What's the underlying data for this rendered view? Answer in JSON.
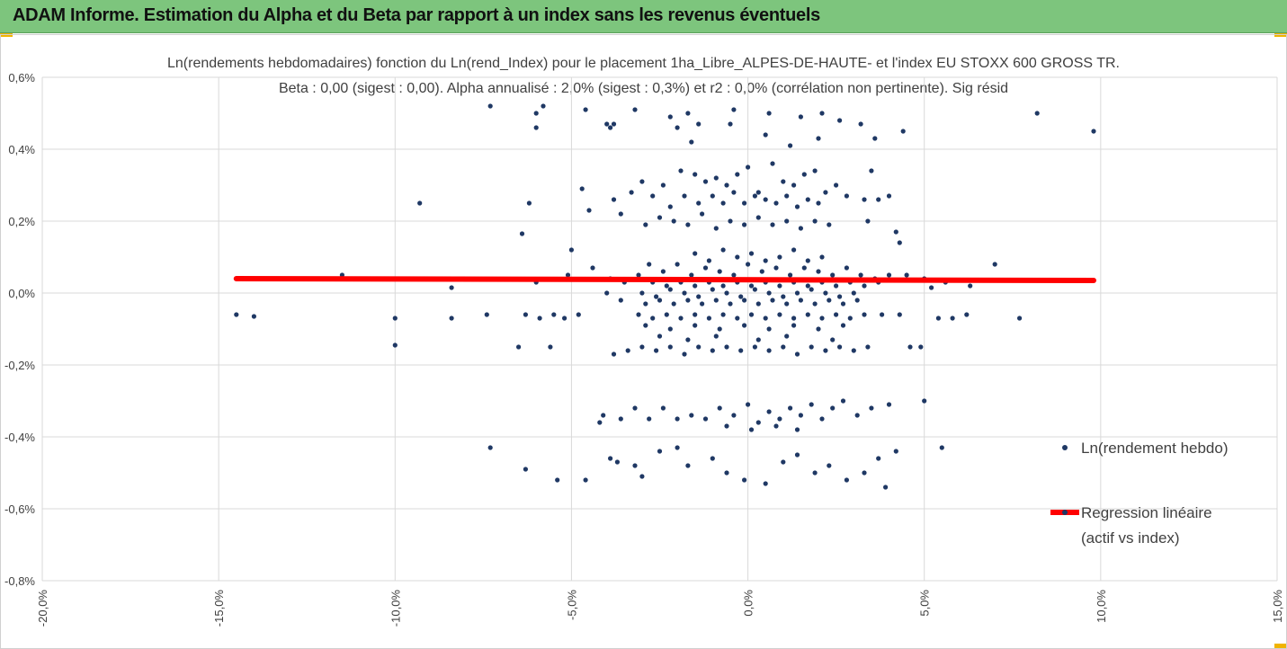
{
  "banner": {
    "title": "ADAM Informe. Estimation du Alpha et du Beta par rapport à un index sans les revenus éventuels"
  },
  "colors": {
    "banner_bg": "#7dc57d",
    "accent_corner": "#f0b400",
    "points": "#1f3864",
    "regression": "#ff0000"
  },
  "chart_data": {
    "type": "scatter",
    "title": "Ln(rendements hebdomadaires) fonction du Ln(rend_Index) pour le placement 1ha_Libre_ALPES-DE-HAUTE- et l'index EU STOXX 600 GROSS TR.",
    "subtitle": "Beta : 0,00 (sigest : 0,00). Alpha annualisé : 2,0% (sigest : 0,3%) et r2 : 0,0% (corrélation non pertinente). Sig résid",
    "xlim": [
      -20,
      15
    ],
    "ylim": [
      -0.8,
      0.6
    ],
    "x_ticks": [
      "-20,0%",
      "-15,0%",
      "-10,0%",
      "-5,0%",
      "0,0%",
      "5,0%",
      "10,0%",
      "15,0%"
    ],
    "y_ticks": [
      "0,6%",
      "0,4%",
      "0,2%",
      "0,0%",
      "-0,2%",
      "-0,4%",
      "-0,6%",
      "-0,8%"
    ],
    "grid": true,
    "legend_position": "right",
    "series": [
      {
        "name": "Ln(rendement hebdo)",
        "kind": "points",
        "points": [
          [
            -14.5,
            -0.06
          ],
          [
            -14.0,
            -0.065
          ],
          [
            -11.5,
            0.05
          ],
          [
            -10.0,
            -0.07
          ],
          [
            -10.0,
            -0.145
          ],
          [
            -9.3,
            0.25
          ],
          [
            -8.4,
            0.015
          ],
          [
            -8.4,
            -0.07
          ],
          [
            -7.4,
            -0.06
          ],
          [
            -7.3,
            -0.43
          ],
          [
            -6.5,
            -0.15
          ],
          [
            -6.4,
            0.165
          ],
          [
            -6.3,
            -0.06
          ],
          [
            -6.3,
            -0.49
          ],
          [
            -6.2,
            0.25
          ],
          [
            -6.0,
            0.03
          ],
          [
            -5.9,
            -0.07
          ],
          [
            -5.6,
            -0.15
          ],
          [
            -5.5,
            -0.06
          ],
          [
            -5.4,
            -0.52
          ],
          [
            -5.2,
            -0.07
          ],
          [
            -5.1,
            0.05
          ],
          [
            -5.0,
            0.12
          ],
          [
            -4.8,
            -0.06
          ],
          [
            -4.7,
            0.29
          ],
          [
            -4.6,
            -0.52
          ],
          [
            -4.5,
            0.23
          ],
          [
            -4.4,
            0.07
          ],
          [
            -6.0,
            0.46
          ],
          [
            -6.0,
            0.5
          ],
          [
            -5.8,
            0.52
          ],
          [
            -4.6,
            0.51
          ],
          [
            -4.0,
            0.47
          ],
          [
            -3.9,
            0.46
          ],
          [
            -3.8,
            0.47
          ],
          [
            -3.2,
            0.51
          ],
          [
            -2.2,
            0.49
          ],
          [
            -2.0,
            0.46
          ],
          [
            -1.7,
            0.5
          ],
          [
            -1.4,
            0.47
          ],
          [
            -0.5,
            0.47
          ],
          [
            0.6,
            0.5
          ],
          [
            1.5,
            0.49
          ],
          [
            2.1,
            0.5
          ],
          [
            2.6,
            0.48
          ],
          [
            3.2,
            0.47
          ],
          [
            3.6,
            0.43
          ],
          [
            4.4,
            0.45
          ],
          [
            8.2,
            0.5
          ],
          [
            9.8,
            0.45
          ],
          [
            -7.3,
            0.52
          ],
          [
            -1.6,
            0.42
          ],
          [
            -0.4,
            0.51
          ],
          [
            0.5,
            0.44
          ],
          [
            1.2,
            0.41
          ],
          [
            2.0,
            0.43
          ],
          [
            -3.9,
            -0.46
          ],
          [
            -3.7,
            -0.47
          ],
          [
            -3.2,
            -0.48
          ],
          [
            -3.0,
            -0.51
          ],
          [
            -2.5,
            -0.44
          ],
          [
            -2.0,
            -0.43
          ],
          [
            -1.7,
            -0.48
          ],
          [
            -1.0,
            -0.46
          ],
          [
            -0.6,
            -0.5
          ],
          [
            -0.1,
            -0.52
          ],
          [
            0.5,
            -0.53
          ],
          [
            1.0,
            -0.47
          ],
          [
            1.4,
            -0.45
          ],
          [
            1.9,
            -0.5
          ],
          [
            2.3,
            -0.48
          ],
          [
            2.8,
            -0.52
          ],
          [
            3.3,
            -0.5
          ],
          [
            3.7,
            -0.46
          ],
          [
            3.9,
            -0.54
          ],
          [
            4.2,
            -0.44
          ],
          [
            4.6,
            -0.15
          ],
          [
            4.9,
            -0.15
          ],
          [
            5.0,
            -0.3
          ],
          [
            5.0,
            0.04
          ],
          [
            5.2,
            0.015
          ],
          [
            5.4,
            -0.07
          ],
          [
            5.5,
            -0.43
          ],
          [
            5.6,
            0.03
          ],
          [
            5.8,
            -0.07
          ],
          [
            6.2,
            -0.06
          ],
          [
            6.3,
            0.02
          ],
          [
            7.0,
            0.08
          ],
          [
            7.7,
            -0.07
          ],
          [
            4.2,
            0.17
          ],
          [
            4.3,
            0.14
          ],
          [
            4.0,
            0.27
          ],
          [
            3.7,
            0.26
          ],
          [
            3.3,
            0.26
          ],
          [
            3.5,
            0.34
          ],
          [
            3.4,
            0.2
          ],
          [
            -3.6,
            0.22
          ],
          [
            -3.8,
            0.26
          ],
          [
            -3.3,
            0.28
          ],
          [
            -3.0,
            0.31
          ],
          [
            -2.7,
            0.27
          ],
          [
            -2.4,
            0.3
          ],
          [
            -2.2,
            0.24
          ],
          [
            -1.9,
            0.34
          ],
          [
            -1.5,
            0.33
          ],
          [
            -1.2,
            0.31
          ],
          [
            -0.9,
            0.32
          ],
          [
            -0.6,
            0.3
          ],
          [
            -0.3,
            0.33
          ],
          [
            0.0,
            0.35
          ],
          [
            0.3,
            0.28
          ],
          [
            0.7,
            0.36
          ],
          [
            1.0,
            0.31
          ],
          [
            1.3,
            0.3
          ],
          [
            1.6,
            0.33
          ],
          [
            1.9,
            0.34
          ],
          [
            2.2,
            0.28
          ],
          [
            2.5,
            0.3
          ],
          [
            2.8,
            0.27
          ],
          [
            -2.9,
            0.19
          ],
          [
            -2.5,
            0.21
          ],
          [
            -2.1,
            0.2
          ],
          [
            -1.7,
            0.19
          ],
          [
            -1.3,
            0.22
          ],
          [
            -0.9,
            0.18
          ],
          [
            -0.5,
            0.2
          ],
          [
            -0.1,
            0.19
          ],
          [
            0.3,
            0.21
          ],
          [
            0.7,
            0.19
          ],
          [
            1.1,
            0.2
          ],
          [
            1.5,
            0.18
          ],
          [
            1.9,
            0.2
          ],
          [
            2.3,
            0.19
          ],
          [
            -1.8,
            0.27
          ],
          [
            -1.4,
            0.25
          ],
          [
            -1.0,
            0.27
          ],
          [
            -0.7,
            0.25
          ],
          [
            -0.4,
            0.28
          ],
          [
            -0.1,
            0.25
          ],
          [
            0.2,
            0.27
          ],
          [
            0.5,
            0.26
          ],
          [
            0.8,
            0.25
          ],
          [
            1.1,
            0.27
          ],
          [
            1.4,
            0.24
          ],
          [
            1.7,
            0.26
          ],
          [
            2.0,
            0.25
          ],
          [
            -1.5,
            0.11
          ],
          [
            -1.1,
            0.09
          ],
          [
            -0.7,
            0.12
          ],
          [
            -0.3,
            0.1
          ],
          [
            0.1,
            0.11
          ],
          [
            0.5,
            0.09
          ],
          [
            0.9,
            0.1
          ],
          [
            1.3,
            0.12
          ],
          [
            1.7,
            0.09
          ],
          [
            2.1,
            0.1
          ],
          [
            -2.8,
            0.08
          ],
          [
            -2.4,
            0.06
          ],
          [
            -2.0,
            0.08
          ],
          [
            -1.6,
            0.05
          ],
          [
            -1.2,
            0.07
          ],
          [
            -0.8,
            0.06
          ],
          [
            -0.4,
            0.05
          ],
          [
            0.0,
            0.08
          ],
          [
            0.4,
            0.06
          ],
          [
            0.8,
            0.07
          ],
          [
            1.2,
            0.05
          ],
          [
            1.6,
            0.07
          ],
          [
            2.0,
            0.06
          ],
          [
            2.4,
            0.05
          ],
          [
            2.8,
            0.07
          ],
          [
            3.2,
            0.05
          ],
          [
            3.6,
            0.04
          ],
          [
            4.0,
            0.05
          ],
          [
            4.5,
            0.05
          ],
          [
            -3.9,
            0.04
          ],
          [
            -3.5,
            0.03
          ],
          [
            -3.1,
            0.05
          ],
          [
            -2.7,
            0.03
          ],
          [
            -2.3,
            0.02
          ],
          [
            -1.9,
            0.03
          ],
          [
            -1.5,
            0.02
          ],
          [
            -1.1,
            0.03
          ],
          [
            -0.7,
            0.02
          ],
          [
            -0.3,
            0.03
          ],
          [
            0.1,
            0.02
          ],
          [
            0.5,
            0.03
          ],
          [
            0.9,
            0.02
          ],
          [
            1.3,
            0.03
          ],
          [
            1.7,
            0.02
          ],
          [
            2.1,
            0.03
          ],
          [
            2.5,
            0.02
          ],
          [
            2.9,
            0.03
          ],
          [
            3.3,
            0.02
          ],
          [
            3.7,
            0.03
          ],
          [
            -3.0,
            0.0
          ],
          [
            -2.6,
            -0.01
          ],
          [
            -2.2,
            0.01
          ],
          [
            -1.8,
            0.0
          ],
          [
            -1.4,
            -0.01
          ],
          [
            -1.0,
            0.01
          ],
          [
            -0.6,
            0.0
          ],
          [
            -0.2,
            -0.01
          ],
          [
            0.2,
            0.01
          ],
          [
            0.6,
            0.0
          ],
          [
            1.0,
            -0.01
          ],
          [
            1.4,
            0.0
          ],
          [
            1.8,
            0.01
          ],
          [
            2.2,
            0.0
          ],
          [
            2.6,
            -0.01
          ],
          [
            3.0,
            0.0
          ],
          [
            -4.0,
            0.0
          ],
          [
            -3.6,
            -0.02
          ],
          [
            -2.9,
            -0.03
          ],
          [
            -2.5,
            -0.02
          ],
          [
            -2.1,
            -0.03
          ],
          [
            -1.7,
            -0.02
          ],
          [
            -1.3,
            -0.03
          ],
          [
            -0.9,
            -0.02
          ],
          [
            -0.5,
            -0.03
          ],
          [
            -0.1,
            -0.02
          ],
          [
            0.3,
            -0.03
          ],
          [
            0.7,
            -0.02
          ],
          [
            1.1,
            -0.03
          ],
          [
            1.5,
            -0.02
          ],
          [
            1.9,
            -0.03
          ],
          [
            2.3,
            -0.02
          ],
          [
            2.7,
            -0.03
          ],
          [
            3.1,
            -0.02
          ],
          [
            -3.1,
            -0.06
          ],
          [
            -2.7,
            -0.07
          ],
          [
            -2.3,
            -0.06
          ],
          [
            -1.9,
            -0.07
          ],
          [
            -1.5,
            -0.06
          ],
          [
            -1.1,
            -0.07
          ],
          [
            -0.7,
            -0.06
          ],
          [
            -0.3,
            -0.07
          ],
          [
            0.1,
            -0.06
          ],
          [
            0.5,
            -0.07
          ],
          [
            0.9,
            -0.06
          ],
          [
            1.3,
            -0.07
          ],
          [
            1.7,
            -0.06
          ],
          [
            2.1,
            -0.07
          ],
          [
            2.5,
            -0.06
          ],
          [
            2.9,
            -0.07
          ],
          [
            3.3,
            -0.06
          ],
          [
            3.8,
            -0.06
          ],
          [
            4.3,
            -0.06
          ],
          [
            -2.9,
            -0.09
          ],
          [
            -2.2,
            -0.1
          ],
          [
            -1.5,
            -0.09
          ],
          [
            -0.8,
            -0.1
          ],
          [
            -0.1,
            -0.09
          ],
          [
            0.6,
            -0.1
          ],
          [
            1.3,
            -0.09
          ],
          [
            2.0,
            -0.1
          ],
          [
            2.7,
            -0.09
          ],
          [
            -3.8,
            -0.17
          ],
          [
            -3.4,
            -0.16
          ],
          [
            -3.0,
            -0.15
          ],
          [
            -2.6,
            -0.16
          ],
          [
            -2.2,
            -0.15
          ],
          [
            -1.8,
            -0.17
          ],
          [
            -1.4,
            -0.15
          ],
          [
            -1.0,
            -0.16
          ],
          [
            -0.6,
            -0.15
          ],
          [
            -0.2,
            -0.16
          ],
          [
            0.2,
            -0.15
          ],
          [
            0.6,
            -0.16
          ],
          [
            1.0,
            -0.15
          ],
          [
            1.4,
            -0.17
          ],
          [
            1.8,
            -0.15
          ],
          [
            2.2,
            -0.16
          ],
          [
            2.6,
            -0.15
          ],
          [
            3.0,
            -0.16
          ],
          [
            3.4,
            -0.15
          ],
          [
            -2.5,
            -0.12
          ],
          [
            -1.7,
            -0.13
          ],
          [
            -0.9,
            -0.12
          ],
          [
            0.3,
            -0.13
          ],
          [
            1.1,
            -0.12
          ],
          [
            2.4,
            -0.13
          ],
          [
            -4.2,
            -0.36
          ],
          [
            -4.1,
            -0.34
          ],
          [
            -3.6,
            -0.35
          ],
          [
            -3.2,
            -0.32
          ],
          [
            -2.8,
            -0.35
          ],
          [
            -2.4,
            -0.32
          ],
          [
            -2.0,
            -0.35
          ],
          [
            -1.6,
            -0.34
          ],
          [
            -1.2,
            -0.35
          ],
          [
            -0.8,
            -0.32
          ],
          [
            -0.4,
            -0.34
          ],
          [
            0.0,
            -0.31
          ],
          [
            0.3,
            -0.36
          ],
          [
            0.6,
            -0.33
          ],
          [
            0.9,
            -0.35
          ],
          [
            1.2,
            -0.32
          ],
          [
            1.5,
            -0.34
          ],
          [
            1.8,
            -0.31
          ],
          [
            2.1,
            -0.35
          ],
          [
            2.4,
            -0.32
          ],
          [
            2.7,
            -0.3
          ],
          [
            3.1,
            -0.34
          ],
          [
            3.5,
            -0.32
          ],
          [
            4.0,
            -0.31
          ],
          [
            -0.6,
            -0.37
          ],
          [
            0.1,
            -0.38
          ],
          [
            0.8,
            -0.37
          ],
          [
            1.4,
            -0.38
          ]
        ]
      },
      {
        "name": "Regression linéaire",
        "name_line2": "(actif vs index)",
        "kind": "line",
        "points": [
          [
            -14.5,
            0.04
          ],
          [
            9.8,
            0.035
          ]
        ]
      }
    ]
  }
}
